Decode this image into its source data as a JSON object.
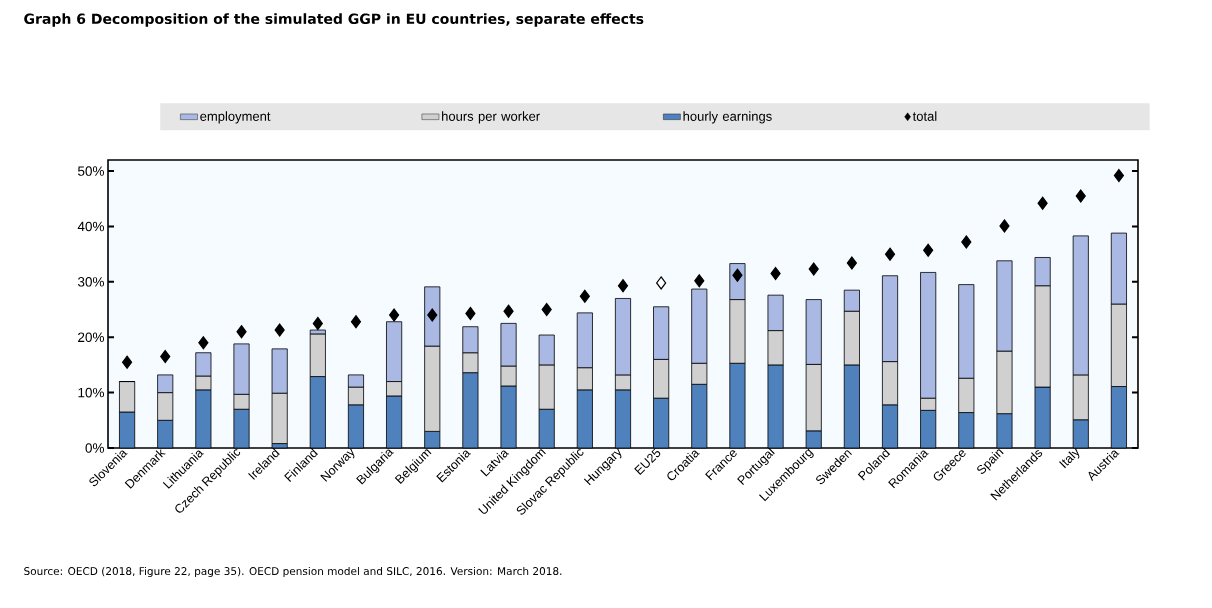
{
  "chart_data": {
    "type": "bar",
    "stacked": true,
    "title": "Graph 6 Decomposition of the simulated GGP in EU countries, separate effects",
    "categories": [
      "Slovenia",
      "Denmark",
      "Lithuania",
      "Czech Republic",
      "Ireland",
      "Finland",
      "Norway",
      "Bulgaria",
      "Belgium",
      "Estonia",
      "Latvia",
      "United Kingdom",
      "Slovac Republic",
      "Hungary",
      "EU25",
      "Croatia",
      "France",
      "Portugal",
      "Luxembourg",
      "Sweden",
      "Poland",
      "Romania",
      "Greece",
      "Spain",
      "Netherlands",
      "Italy",
      "Austria"
    ],
    "series": [
      {
        "name": "hourly earnings",
        "color": "#4f81bd",
        "values": [
          6.5,
          5,
          10.5,
          7,
          0.8,
          12.9,
          7.8,
          9.4,
          3,
          13.6,
          11.2,
          7,
          10.5,
          10.5,
          9,
          11.5,
          15.3,
          15,
          3.1,
          15,
          7.8,
          6.8,
          6.4,
          6.2,
          11,
          5.1,
          11.1
        ]
      },
      {
        "name": "hours per worker",
        "color": "#d0d0d0",
        "values": [
          5.5,
          5,
          2.5,
          2.7,
          9.1,
          7.7,
          3.2,
          2.6,
          15.4,
          3.6,
          3.6,
          8,
          4,
          2.7,
          7,
          3.8,
          11.5,
          6.2,
          12,
          9.7,
          7.8,
          2.2,
          6.2,
          11.3,
          18.3,
          8.1,
          14.9
        ]
      },
      {
        "name": "employment",
        "color": "#a9b9e4",
        "values": [
          0,
          3.2,
          4.2,
          9.1,
          8,
          0.7,
          2.2,
          10.8,
          10.7,
          4.7,
          7.7,
          5.4,
          9.9,
          13.8,
          9.5,
          13.4,
          6.5,
          6.4,
          11.7,
          3.8,
          15.5,
          22.7,
          16.9,
          16.3,
          5.1,
          25.1,
          12.8
        ]
      },
      {
        "name": "total",
        "type": "scatter",
        "marker": "diamond",
        "color": "#000000",
        "values": [
          15.5,
          16.5,
          19,
          21,
          21.3,
          22.5,
          22.8,
          24,
          24,
          24.3,
          24.7,
          25,
          27.4,
          29.3,
          29.8,
          30.2,
          31.2,
          31.5,
          32.3,
          33.4,
          35,
          35.7,
          37.2,
          40.1,
          44.2,
          45.5,
          49.2
        ],
        "colors": [
          "#000000",
          "#000000",
          "#000000",
          "#000000",
          "#000000",
          "#000000",
          "#000000",
          "#000000",
          "#000000",
          "#000000",
          "#000000",
          "#000000",
          "#000000",
          "#000000",
          "#ffffff",
          "#000000",
          "#000000",
          "#000000",
          "#000000",
          "#000000",
          "#000000",
          "#000000",
          "#000000",
          "#000000",
          "#000000",
          "#000000",
          "#000000"
        ]
      }
    ],
    "ylim": [
      0,
      52
    ],
    "yticks": [
      {
        "value": 0,
        "label": "0%"
      },
      {
        "value": 10,
        "label": "10%"
      },
      {
        "value": 20,
        "label": "20%"
      },
      {
        "value": 30,
        "label": "30%"
      },
      {
        "value": 40,
        "label": "40%"
      },
      {
        "value": 50,
        "label": "50%"
      }
    ],
    "legend": "top",
    "grid": false,
    "annotations": [
      "Source: OECD (2018, Figure 22, page 35). OECD pension model and SILC, 2016. Version: March 2018."
    ]
  }
}
